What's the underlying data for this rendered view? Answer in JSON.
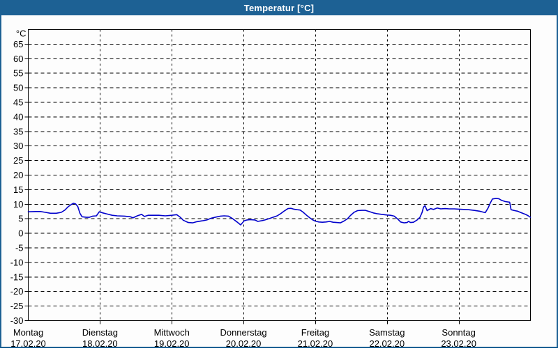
{
  "window": {
    "title": "Temperatur [°C]"
  },
  "colors": {
    "titlebar": "#1d6194",
    "title_text": "#ffffff",
    "background": "#fdfdfd",
    "frame": "#000000",
    "grid": "#000000",
    "line": "#0000cc",
    "label_text": "#000000"
  },
  "chart_data": {
    "type": "line",
    "title": "Temperatur [°C]",
    "ylabel_unit": "°C",
    "ylim": [
      -30,
      70
    ],
    "xlim": [
      0,
      7
    ],
    "ytick_step": 5,
    "yticks": [
      65,
      60,
      55,
      50,
      45,
      40,
      35,
      30,
      25,
      20,
      15,
      10,
      5,
      0,
      -5,
      -10,
      -15,
      -20,
      -25,
      -30
    ],
    "grid": "dashed-both",
    "legend": "none",
    "x_days": [
      {
        "label": "Montag",
        "date": "17.02.20"
      },
      {
        "label": "Dienstag",
        "date": "18.02.20"
      },
      {
        "label": "Mittwoch",
        "date": "19.02.20"
      },
      {
        "label": "Donnerstag",
        "date": "20.02.20"
      },
      {
        "label": "Freitag",
        "date": "21.02.20"
      },
      {
        "label": "Samstag",
        "date": "22.02.20"
      },
      {
        "label": "Sonntag",
        "date": "23.02.20"
      }
    ],
    "series": [
      {
        "name": "Temperatur",
        "color": "#0000cc",
        "points_day_temp": [
          [
            0.0,
            7.4
          ],
          [
            0.1,
            7.5
          ],
          [
            0.17,
            7.5
          ],
          [
            0.24,
            7.2
          ],
          [
            0.31,
            6.9
          ],
          [
            0.39,
            6.9
          ],
          [
            0.46,
            7.2
          ],
          [
            0.51,
            8.0
          ],
          [
            0.56,
            9.2
          ],
          [
            0.6,
            9.9
          ],
          [
            0.63,
            10.3
          ],
          [
            0.66,
            10.1
          ],
          [
            0.69,
            9.2
          ],
          [
            0.72,
            6.9
          ],
          [
            0.75,
            5.7
          ],
          [
            0.81,
            5.5
          ],
          [
            0.85,
            5.5
          ],
          [
            0.9,
            5.9
          ],
          [
            0.95,
            6.0
          ],
          [
            0.99,
            7.4
          ],
          [
            1.04,
            7.0
          ],
          [
            1.09,
            6.7
          ],
          [
            1.17,
            6.2
          ],
          [
            1.24,
            6.0
          ],
          [
            1.34,
            5.9
          ],
          [
            1.42,
            5.7
          ],
          [
            1.46,
            5.3
          ],
          [
            1.52,
            6.0
          ],
          [
            1.58,
            6.5
          ],
          [
            1.62,
            5.8
          ],
          [
            1.67,
            6.2
          ],
          [
            1.75,
            6.2
          ],
          [
            1.82,
            6.2
          ],
          [
            1.91,
            6.0
          ],
          [
            2.0,
            6.2
          ],
          [
            2.07,
            6.4
          ],
          [
            2.12,
            5.5
          ],
          [
            2.16,
            4.5
          ],
          [
            2.23,
            3.7
          ],
          [
            2.29,
            3.6
          ],
          [
            2.35,
            4.0
          ],
          [
            2.43,
            4.3
          ],
          [
            2.49,
            4.6
          ],
          [
            2.55,
            5.2
          ],
          [
            2.62,
            5.6
          ],
          [
            2.68,
            5.9
          ],
          [
            2.73,
            6.0
          ],
          [
            2.79,
            5.9
          ],
          [
            2.84,
            5.2
          ],
          [
            2.91,
            3.9
          ],
          [
            2.96,
            2.9
          ],
          [
            3.01,
            4.3
          ],
          [
            3.05,
            4.6
          ],
          [
            3.09,
            4.7
          ],
          [
            3.16,
            4.6
          ],
          [
            3.2,
            4.1
          ],
          [
            3.25,
            4.3
          ],
          [
            3.3,
            4.6
          ],
          [
            3.35,
            5.0
          ],
          [
            3.4,
            5.4
          ],
          [
            3.47,
            6.0
          ],
          [
            3.52,
            6.8
          ],
          [
            3.57,
            7.7
          ],
          [
            3.62,
            8.5
          ],
          [
            3.66,
            8.6
          ],
          [
            3.7,
            8.3
          ],
          [
            3.75,
            8.1
          ],
          [
            3.79,
            8.0
          ],
          [
            3.83,
            7.3
          ],
          [
            3.88,
            6.2
          ],
          [
            3.92,
            5.4
          ],
          [
            3.96,
            4.7
          ],
          [
            4.0,
            4.2
          ],
          [
            4.05,
            3.9
          ],
          [
            4.1,
            3.8
          ],
          [
            4.15,
            3.9
          ],
          [
            4.2,
            4.1
          ],
          [
            4.25,
            3.8
          ],
          [
            4.3,
            3.7
          ],
          [
            4.35,
            3.6
          ],
          [
            4.4,
            4.2
          ],
          [
            4.45,
            5.0
          ],
          [
            4.49,
            6.1
          ],
          [
            4.54,
            7.2
          ],
          [
            4.59,
            7.8
          ],
          [
            4.65,
            7.9
          ],
          [
            4.7,
            7.9
          ],
          [
            4.75,
            7.5
          ],
          [
            4.81,
            7.0
          ],
          [
            4.87,
            6.7
          ],
          [
            4.93,
            6.5
          ],
          [
            5.0,
            6.3
          ],
          [
            5.05,
            6.2
          ],
          [
            5.1,
            5.9
          ],
          [
            5.15,
            4.9
          ],
          [
            5.19,
            3.9
          ],
          [
            5.24,
            3.6
          ],
          [
            5.28,
            3.7
          ],
          [
            5.3,
            4.1
          ],
          [
            5.33,
            3.7
          ],
          [
            5.37,
            3.8
          ],
          [
            5.42,
            4.6
          ],
          [
            5.46,
            5.5
          ],
          [
            5.49,
            7.2
          ],
          [
            5.51,
            9.0
          ],
          [
            5.53,
            9.5
          ],
          [
            5.56,
            7.8
          ],
          [
            5.61,
            8.5
          ],
          [
            5.65,
            8.2
          ],
          [
            5.7,
            8.7
          ],
          [
            5.75,
            8.4
          ],
          [
            5.81,
            8.5
          ],
          [
            5.87,
            8.4
          ],
          [
            5.94,
            8.4
          ],
          [
            6.0,
            8.3
          ],
          [
            6.07,
            8.2
          ],
          [
            6.14,
            8.1
          ],
          [
            6.21,
            7.9
          ],
          [
            6.29,
            7.6
          ],
          [
            6.34,
            7.3
          ],
          [
            6.37,
            7.1
          ],
          [
            6.41,
            8.7
          ],
          [
            6.44,
            10.4
          ],
          [
            6.47,
            11.8
          ],
          [
            6.52,
            12.0
          ],
          [
            6.56,
            11.9
          ],
          [
            6.6,
            11.3
          ],
          [
            6.65,
            10.9
          ],
          [
            6.71,
            10.7
          ],
          [
            6.73,
            8.1
          ],
          [
            6.78,
            7.8
          ],
          [
            6.82,
            7.6
          ],
          [
            6.85,
            7.3
          ],
          [
            6.89,
            6.9
          ],
          [
            6.94,
            6.4
          ],
          [
            6.97,
            6.0
          ],
          [
            7.0,
            5.5
          ]
        ]
      }
    ]
  }
}
